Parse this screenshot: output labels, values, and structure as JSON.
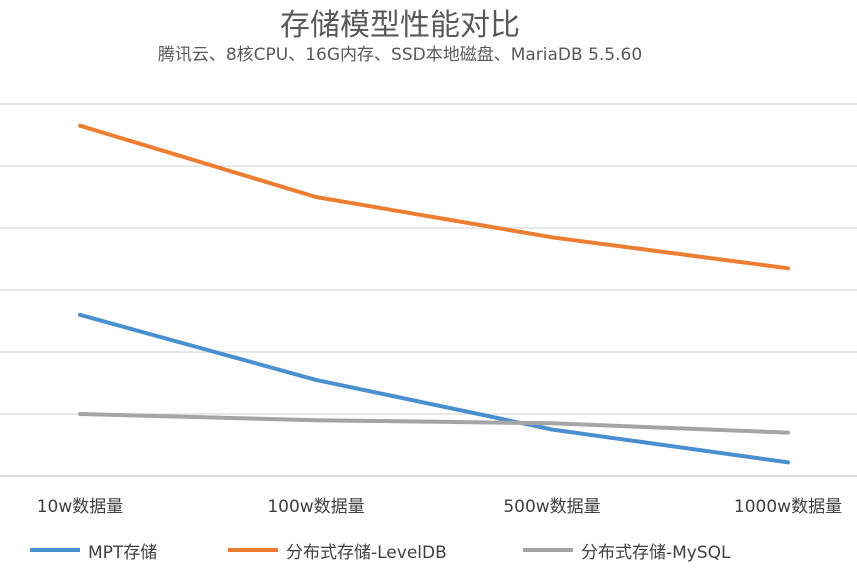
{
  "chart_data": {
    "type": "line",
    "title": "存储模型性能对比",
    "subtitle": "腾讯云、8核CPU、16G内存、SSD本地磁盘、MariaDB 5.5.60",
    "categories": [
      "10w数据量",
      "100w数据量",
      "500w数据量",
      "1000w数据量"
    ],
    "series": [
      {
        "name": "MPT存储",
        "color": "#4a8fd0",
        "values": [
          2.6,
          1.55,
          0.75,
          0.22
        ]
      },
      {
        "name": "分布式存储-LevelDB",
        "color": "#ed7d31",
        "values": [
          5.65,
          4.5,
          3.85,
          3.35
        ]
      },
      {
        "name": "分布式存储-MySQL",
        "color": "#a5a5a5",
        "values": [
          1.0,
          0.9,
          0.85,
          0.7
        ]
      }
    ],
    "ylim": [
      0,
      7
    ],
    "grid": true,
    "legend_position": "bottom"
  }
}
